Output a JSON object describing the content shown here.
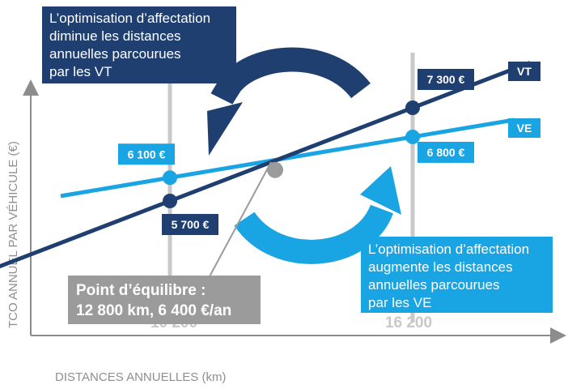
{
  "colors": {
    "vt": "#1e3f6f",
    "ve": "#19a4e3",
    "equilibrium": "#9b9b9b",
    "axis": "#8c8c8c",
    "tick_text": "#c8c8c8",
    "axis_title_text": "#8f8f8f"
  },
  "chart_data": {
    "type": "line",
    "xlabel": "DISTANCES ANNUELLES (km)",
    "ylabel": "TCO ANNUEL PAR VÉHICULE (€)",
    "x_ticks": [
      "10 200",
      "16 200"
    ],
    "series": [
      {
        "name": "VT",
        "key": "vt",
        "points": [
          {
            "x": 10200,
            "y": 5700,
            "label": "5 700 €"
          },
          {
            "x": 16200,
            "y": 7300,
            "label": "7 300 €"
          }
        ]
      },
      {
        "name": "VE",
        "key": "ve",
        "points": [
          {
            "x": 10200,
            "y": 6100,
            "label": "6 100 €"
          },
          {
            "x": 16200,
            "y": 6800,
            "label": "6 800 €"
          }
        ]
      }
    ],
    "equilibrium": {
      "x": 12800,
      "y": 6400
    }
  },
  "annotations": {
    "equilibrium_box": {
      "lines": [
        "Point d’équilibre :",
        "12 800 km, 6 400 €/an"
      ]
    },
    "vt_box": {
      "lines": [
        "L’optimisation d’affectation",
        "diminue les distances",
        "annuelles parcourues",
        "par les VT"
      ]
    },
    "ve_box": {
      "lines": [
        "L’optimisation d’affectation",
        "augmente les distances",
        "annuelles parcourues",
        "par les VE"
      ]
    }
  }
}
